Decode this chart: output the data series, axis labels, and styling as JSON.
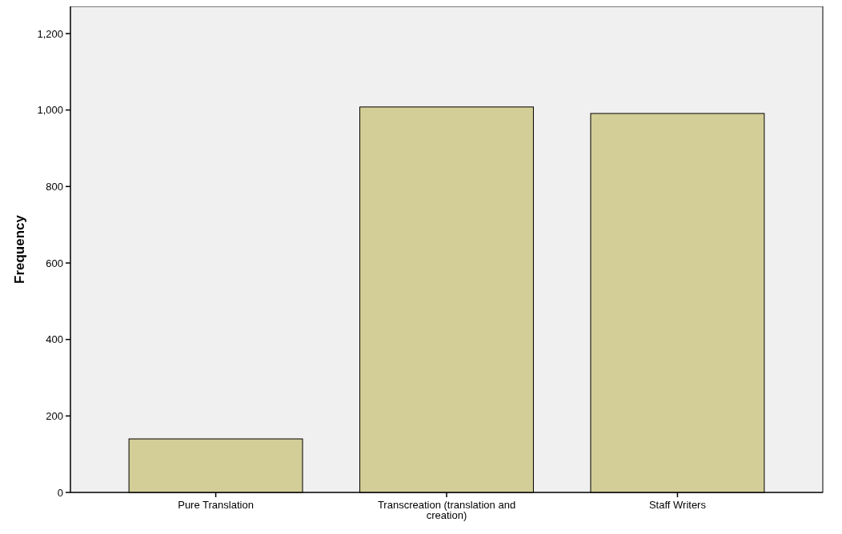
{
  "chart_data": {
    "type": "bar",
    "ylabel": "Frequency",
    "categories": [
      "Pure Translation",
      "Transcreation (translation and creation)",
      "Staff Writers"
    ],
    "values": [
      140,
      1008,
      991
    ],
    "color": "#d3ce97",
    "ylim": [
      0,
      1271
    ],
    "yticks": [
      0,
      200,
      400,
      600,
      800,
      {
        "value": 1000,
        "label": "1,000"
      },
      {
        "value": 1200,
        "label": "1,200"
      }
    ],
    "grid": false
  }
}
